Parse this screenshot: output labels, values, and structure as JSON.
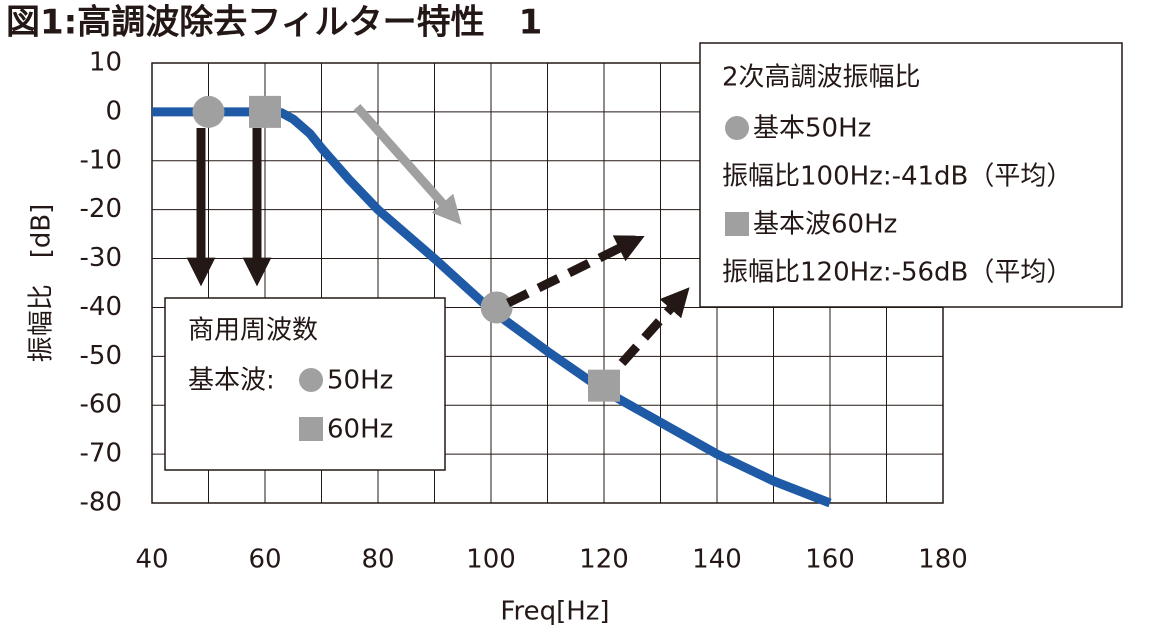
{
  "chart_data": {
    "type": "line",
    "title": "図1:高調波除去フィルター特性　1",
    "x_label": "Freq[Hz]",
    "y_label": "振幅比　[dB]",
    "x": [
      40,
      50,
      60,
      63,
      65,
      68,
      70,
      75,
      80,
      90,
      100,
      110,
      120,
      130,
      140,
      150,
      160
    ],
    "series": [
      {
        "color": "#1f5aa6",
        "values": [
          0,
          0,
          0,
          -0.2,
          -1.5,
          -4.5,
          -7.4,
          -14,
          -20,
          -30,
          -40.5,
          -49,
          -57,
          -63.5,
          -70,
          -75.5,
          -80
        ]
      }
    ],
    "markers": [
      {
        "shape": "circle",
        "x": 50,
        "y": 0
      },
      {
        "shape": "square",
        "x": 60,
        "y": 0
      },
      {
        "shape": "circle",
        "x": 101,
        "y": -40
      },
      {
        "shape": "square",
        "x": 120,
        "y": -56
      }
    ],
    "marker_color": "#a0a0a0",
    "xlim": [
      40,
      180
    ],
    "xticks": [
      40,
      60,
      80,
      100,
      120,
      140,
      160,
      180
    ],
    "x_minor_ticks": [
      50,
      70,
      90,
      110,
      130,
      150,
      170
    ],
    "ylim": [
      -80,
      10
    ],
    "yticks": [
      10,
      0,
      -10,
      -20,
      -30,
      -40,
      -50,
      -60,
      -70,
      -80
    ],
    "grid": true,
    "annotations": {
      "mains": {
        "heading": "商用周波数",
        "label": "基本波:",
        "first": "50Hz",
        "second": "60Hz"
      },
      "harmonic": {
        "heading": "2次高調波振幅比",
        "first": "基本50Hz",
        "first_ratio": "振幅比100Hz:-41dB（平均）",
        "second": "基本波60Hz",
        "second_ratio": "振幅比120Hz:-56dB（平均）"
      }
    }
  }
}
